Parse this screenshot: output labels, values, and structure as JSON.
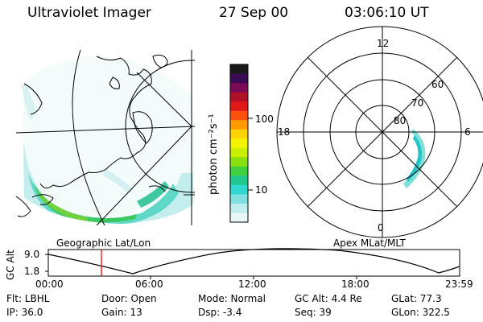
{
  "header": {
    "title": "Ultraviolet Imager",
    "date": "27 Sep 00",
    "time": "03:06:10 UT"
  },
  "colorbar": {
    "unit_label": "photon cm⁻²s⁻¹",
    "ticks": [
      "100",
      "10"
    ],
    "colors": [
      "#1a1a1a",
      "#3a0a55",
      "#7a0a55",
      "#b0102a",
      "#e01818",
      "#ff5010",
      "#ff9a00",
      "#ffd400",
      "#f4f400",
      "#c8f000",
      "#8ae010",
      "#40d040",
      "#20c890",
      "#30d8d0",
      "#80e0e0",
      "#c0eeee",
      "#e8f6f6"
    ]
  },
  "left_panel": {
    "label": "Geographic Lat/Lon"
  },
  "right_panel": {
    "label": "Apex MLat/MLT",
    "mlt_labels": [
      "12",
      "18",
      "6",
      "0"
    ],
    "lat_labels": [
      "60",
      "70",
      "80"
    ]
  },
  "altitude_plot": {
    "ylabel": "GC Alt",
    "y_ticks": [
      "9.0",
      "1.8"
    ],
    "x_ticks": [
      "00:00",
      "06:00",
      "12:00",
      "18:00",
      "23:59"
    ],
    "marker_time": "03:06"
  },
  "status": {
    "row1": [
      {
        "key": "flt",
        "text": "Flt: LBHL"
      },
      {
        "key": "door",
        "text": "Door: Open"
      },
      {
        "key": "mode",
        "text": "Mode: Normal"
      },
      {
        "key": "gcalt",
        "text": "GC Alt: 4.4 Re"
      },
      {
        "key": "glat",
        "text": "GLat:  77.3"
      }
    ],
    "row2": [
      {
        "key": "ip",
        "text": "IP: 36.0"
      },
      {
        "key": "gain",
        "text": "Gain: 13"
      },
      {
        "key": "dsp",
        "text": "Dsp:   -3.4"
      },
      {
        "key": "seq",
        "text": "Seq: 39"
      },
      {
        "key": "glon",
        "text": "GLon: 322.5"
      }
    ]
  }
}
